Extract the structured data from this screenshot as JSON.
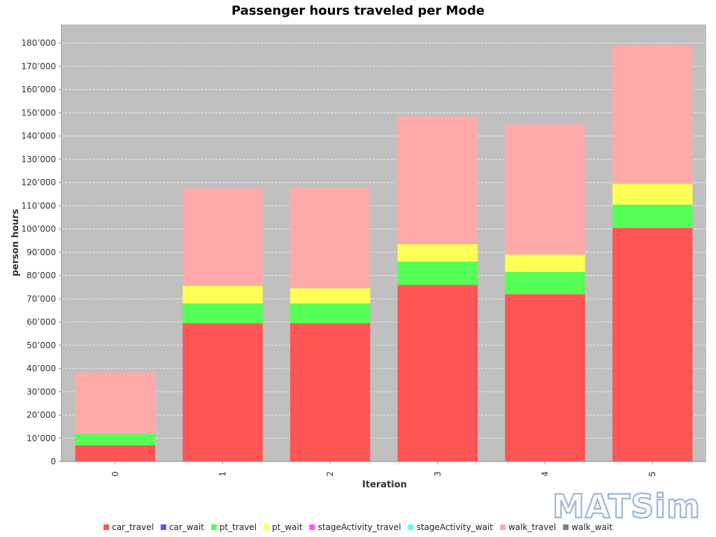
{
  "chart_data": {
    "type": "bar",
    "stacked": true,
    "title": "Passenger hours traveled per Mode",
    "xlabel": "Iteration",
    "ylabel": "person hours",
    "categories": [
      "0",
      "1",
      "2",
      "3",
      "4",
      "5"
    ],
    "ylim": [
      0,
      188000
    ],
    "yticks": [
      0,
      10000,
      20000,
      30000,
      40000,
      50000,
      60000,
      70000,
      80000,
      90000,
      100000,
      110000,
      120000,
      130000,
      140000,
      150000,
      160000,
      170000,
      180000
    ],
    "ytick_labels": [
      "0",
      "10’000",
      "20’000",
      "30’000",
      "40’000",
      "50’000",
      "60’000",
      "70’000",
      "80’000",
      "90’000",
      "100’000",
      "110’000",
      "120’000",
      "130’000",
      "140’000",
      "150’000",
      "160’000",
      "170’000",
      "180’000"
    ],
    "grid": true,
    "legend_position": "bottom",
    "plot_background": "#c0c0c0",
    "series": [
      {
        "name": "car_travel",
        "color": "#ff5555",
        "values": [
          7000,
          59500,
          59500,
          76000,
          72000,
          100500
        ]
      },
      {
        "name": "car_wait",
        "color": "#5555ff",
        "values": [
          0,
          0,
          0,
          0,
          0,
          0
        ]
      },
      {
        "name": "pt_travel",
        "color": "#55ff55",
        "values": [
          4800,
          8500,
          8500,
          10000,
          9500,
          10000
        ]
      },
      {
        "name": "pt_wait",
        "color": "#ffff55",
        "values": [
          0,
          7500,
          6500,
          7500,
          7500,
          9000
        ]
      },
      {
        "name": "stageActivity_travel",
        "color": "#ff55ff",
        "values": [
          0,
          0,
          0,
          0,
          0,
          0
        ]
      },
      {
        "name": "stageActivity_wait",
        "color": "#55ffff",
        "values": [
          0,
          0,
          0,
          0,
          0,
          0
        ]
      },
      {
        "name": "walk_travel",
        "color": "#ffaaaa",
        "values": [
          26500,
          42000,
          43500,
          55000,
          56000,
          59500
        ]
      },
      {
        "name": "walk_wait",
        "color": "#808080",
        "values": [
          0,
          0,
          0,
          0,
          0,
          0
        ]
      }
    ]
  },
  "logo": {
    "text": "MATSim"
  }
}
